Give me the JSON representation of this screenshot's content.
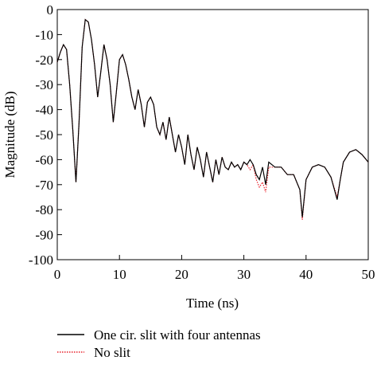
{
  "chart_data": {
    "type": "line",
    "xlabel": "Time (ns)",
    "ylabel": "Magnitude (dB)",
    "x": [
      0,
      0.5,
      1,
      1.5,
      2,
      2.5,
      3,
      3.5,
      4,
      4.5,
      5,
      5.5,
      6,
      6.5,
      7,
      7.5,
      8,
      8.5,
      9,
      9.5,
      10,
      10.5,
      11,
      11.5,
      12,
      12.5,
      13,
      13.5,
      14,
      14.5,
      15,
      15.5,
      16,
      16.5,
      17,
      17.5,
      18,
      18.5,
      19,
      19.5,
      20,
      20.5,
      21,
      21.5,
      22,
      22.5,
      23,
      23.5,
      24,
      24.5,
      25,
      25.5,
      26,
      26.5,
      27,
      27.5,
      28,
      28.5,
      29,
      29.5,
      30,
      30.5,
      31,
      31.5,
      32,
      32.5,
      33,
      33.5,
      34,
      35,
      36,
      37,
      38,
      39,
      39.4,
      40,
      41,
      42,
      43,
      44,
      45,
      45.5,
      46,
      47,
      48,
      49,
      50
    ],
    "series": [
      {
        "name": "One cir. slit with four antennas",
        "color": "#000000",
        "dash": "solid",
        "values": [
          -21,
          -17,
          -14,
          -16,
          -30,
          -48,
          -69,
          -45,
          -15,
          -4,
          -5,
          -12,
          -22,
          -35,
          -25,
          -14,
          -20,
          -30,
          -45,
          -33,
          -20,
          -18,
          -22,
          -28,
          -35,
          -40,
          -32,
          -38,
          -47,
          -37,
          -35,
          -38,
          -47,
          -50,
          -45,
          -52,
          -43,
          -50,
          -57,
          -50,
          -55,
          -62,
          -50,
          -58,
          -64,
          -55,
          -60,
          -67,
          -57,
          -63,
          -69,
          -60,
          -66,
          -59,
          -63,
          -64,
          -61,
          -63,
          -62,
          -64,
          -61,
          -62,
          -60,
          -62,
          -66,
          -68,
          -63,
          -70,
          -61,
          -63,
          -63,
          -66,
          -66,
          -72,
          -83,
          -68,
          -63,
          -62,
          -63,
          -67,
          -76,
          -68,
          -61,
          -57,
          -56,
          -58,
          -61
        ]
      },
      {
        "name": "No slit",
        "color": "#e8202a",
        "dash": "dotted",
        "values": [
          -21,
          -17,
          -14,
          -16,
          -30,
          -48,
          -69,
          -45,
          -15,
          -4,
          -5,
          -12,
          -22,
          -35,
          -25,
          -14,
          -20,
          -30,
          -45,
          -33,
          -20,
          -18,
          -22,
          -28,
          -35,
          -40,
          -32,
          -38,
          -47,
          -37,
          -35,
          -38,
          -47,
          -50,
          -45,
          -52,
          -43,
          -50,
          -57,
          -50,
          -55,
          -62,
          -50,
          -58,
          -64,
          -55,
          -60,
          -67,
          -57,
          -63,
          -69,
          -60,
          -66,
          -59,
          -63,
          -64,
          -61,
          -63,
          -62,
          -64,
          -61,
          -62,
          -64,
          -62,
          -68,
          -71,
          -69,
          -73,
          -63,
          -63,
          -63,
          -66,
          -66,
          -72,
          -84,
          -68,
          -63,
          -62,
          -63,
          -67,
          -75,
          -68,
          -61,
          -57,
          -56,
          -58,
          -61
        ]
      }
    ],
    "xlim": [
      0,
      50
    ],
    "xticks": [
      0,
      10,
      20,
      30,
      40,
      50
    ],
    "ylim": [
      -100,
      0
    ],
    "yticks": [
      0,
      -10,
      -20,
      -30,
      -40,
      -50,
      -60,
      -70,
      -80,
      -90,
      -100
    ]
  }
}
